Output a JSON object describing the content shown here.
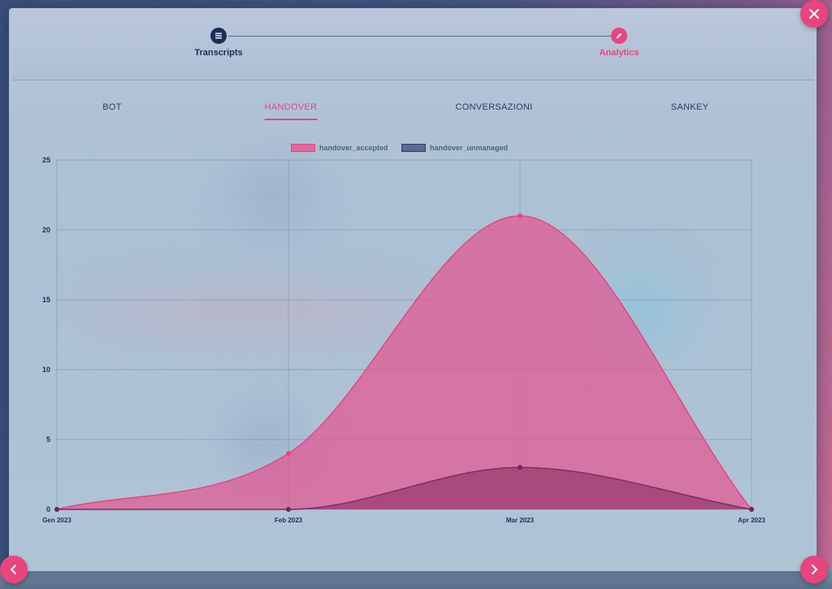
{
  "stepper": {
    "steps": [
      {
        "label": "Transcripts",
        "icon": "list-icon",
        "state": "done"
      },
      {
        "label": "Analytics",
        "icon": "pencil-icon",
        "state": "active"
      }
    ]
  },
  "tabs": [
    {
      "label": "BOT",
      "active": false
    },
    {
      "label": "HANDOVER",
      "active": true
    },
    {
      "label": "CONVERSAZIONI",
      "active": false
    },
    {
      "label": "SANKEY",
      "active": false
    }
  ],
  "colors": {
    "accent": "#e8457e",
    "dark": "#1f2d56",
    "accepted_fill": "#e0679a",
    "unmanaged_fill": "#a0417a"
  },
  "chart_data": {
    "type": "area",
    "x": [
      "Gen 2023",
      "Feb 2023",
      "Mar 2023",
      "Apr 2023"
    ],
    "series": [
      {
        "name": "handover_accepted",
        "values": [
          0,
          4,
          21,
          0
        ]
      },
      {
        "name": "handover_unmanaged",
        "values": [
          0,
          0,
          3,
          0
        ]
      }
    ],
    "ylim": [
      0,
      25
    ],
    "yticks": [
      0,
      5,
      10,
      15,
      20,
      25
    ],
    "grid": true,
    "legend_position": "top-center",
    "smooth": true
  },
  "buttons": {
    "close": "close-icon",
    "prev": "chevron-left-icon",
    "next": "chevron-right-icon"
  }
}
